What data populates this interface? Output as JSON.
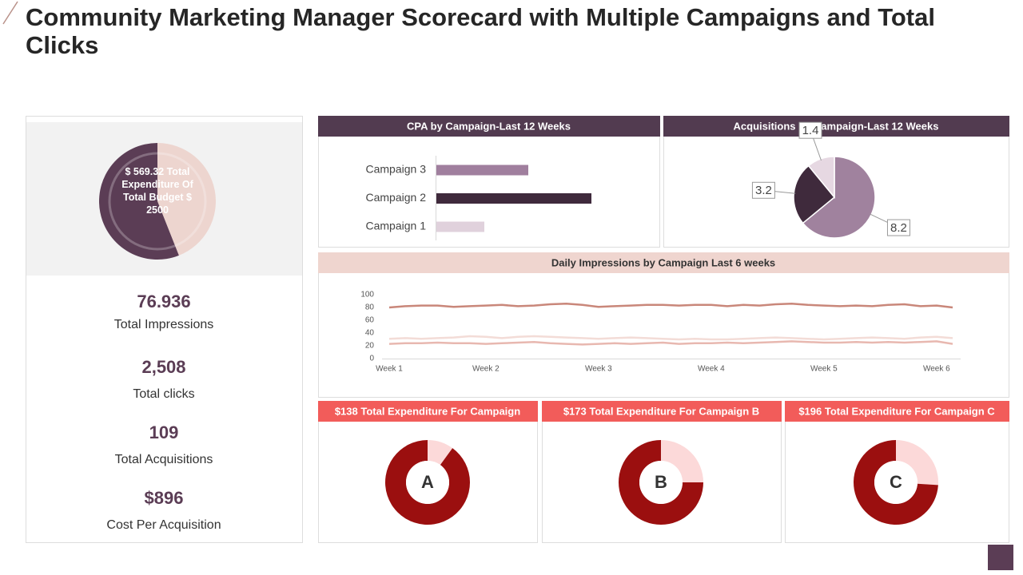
{
  "title": "Community Marketing Manager Scorecard with Multiple Campaigns and Total Clicks",
  "kpis": [
    {
      "value": "76.936",
      "label": "Total Impressions"
    },
    {
      "value": "2,508",
      "label": "Total clicks"
    },
    {
      "value": "109",
      "label": "Total Acquisitions"
    },
    {
      "value": "$896",
      "label": "Cost Per Acquisition"
    }
  ],
  "chart_data": [
    {
      "type": "pie",
      "center_label": "$ 569.32 Total Expenditure Of Total Budget $ 2500",
      "values": [
        44,
        56
      ],
      "colors": [
        "#edd5cf",
        "#5b3d55"
      ]
    },
    {
      "type": "bar",
      "orientation": "horizontal",
      "title": "CPA by Campaign-Last 12 Weeks",
      "categories": [
        "Campaign 1",
        "Campaign 2",
        "Campaign 3"
      ],
      "values": [
        60,
        194,
        115
      ],
      "colors": [
        "#e0d1dc",
        "#3f2a3c",
        "#a07f9e"
      ],
      "xlim": [
        0,
        250
      ]
    },
    {
      "type": "pie",
      "title": "Acquisitions  by Campaign-Last 12 Weeks",
      "data_labels": true,
      "values": [
        8.2,
        3.2,
        1.4
      ],
      "colors": [
        "#a0829e",
        "#3f2a3c",
        "#e6d8e2"
      ]
    },
    {
      "type": "line",
      "title": "Daily Impressions  by Campaign Last 6 weeks",
      "categories": [
        "Week 1",
        null,
        null,
        null,
        null,
        null,
        "Week 2",
        null,
        null,
        null,
        null,
        null,
        null,
        "Week 3",
        null,
        null,
        null,
        null,
        null,
        null,
        "Week 4",
        null,
        null,
        null,
        null,
        null,
        null,
        "Week 5",
        null,
        null,
        null,
        null,
        null,
        null,
        "Week 6",
        null
      ],
      "ylim": [
        0,
        100
      ],
      "yticks": [
        0,
        20,
        40,
        60,
        80,
        100
      ],
      "grid": false,
      "series": [
        {
          "color": "#c9877a",
          "values": [
            80,
            82,
            83,
            83,
            81,
            82,
            83,
            84,
            82,
            83,
            85,
            86,
            84,
            81,
            82,
            83,
            84,
            84,
            83,
            84,
            84,
            82,
            84,
            83,
            85,
            86,
            84,
            83,
            82,
            83,
            82,
            84,
            85,
            82,
            83,
            80
          ]
        },
        {
          "color": "#f3dcd7",
          "values": [
            31,
            32,
            31,
            32,
            33,
            35,
            34,
            32,
            34,
            35,
            34,
            33,
            32,
            31,
            32,
            33,
            32,
            31,
            30,
            31,
            30,
            30,
            31,
            32,
            33,
            32,
            31,
            30,
            31,
            32,
            33,
            32,
            31,
            33,
            34,
            32
          ]
        },
        {
          "color": "#e8b8b0",
          "values": [
            23,
            24,
            24,
            25,
            24,
            24,
            23,
            24,
            25,
            26,
            24,
            23,
            22,
            23,
            24,
            23,
            24,
            25,
            23,
            24,
            24,
            25,
            24,
            25,
            26,
            27,
            26,
            25,
            25,
            26,
            25,
            26,
            25,
            26,
            27,
            23
          ]
        }
      ]
    },
    {
      "type": "donut",
      "title": "$138 Total Expenditure For Campaign",
      "center_label": "A",
      "values": [
        10,
        90
      ],
      "colors": [
        "#fcd9d9",
        "#9b0f0f"
      ]
    },
    {
      "type": "donut",
      "title": "$173 Total Expenditure For Campaign B",
      "center_label": "B",
      "values": [
        25,
        75
      ],
      "colors": [
        "#fcd9d9",
        "#9b0f0f"
      ]
    },
    {
      "type": "donut",
      "title": "$196 Total Expenditure For Campaign C",
      "center_label": "C",
      "values": [
        26,
        74
      ],
      "colors": [
        "#fcd9d9",
        "#9b0f0f"
      ]
    }
  ]
}
